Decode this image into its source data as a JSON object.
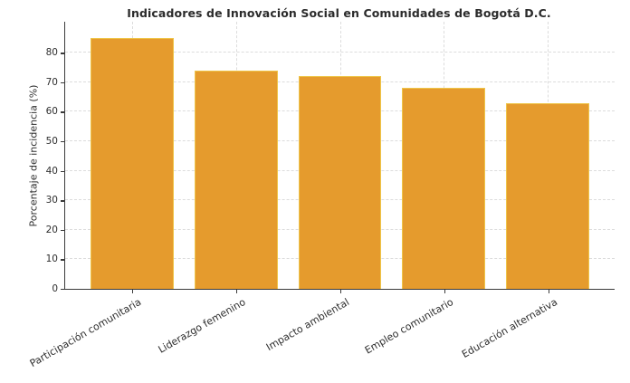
{
  "chart_data": {
    "type": "bar",
    "title": "Indicadores de Innovación Social en Comunidades de Bogotá D.C.",
    "xlabel": "",
    "ylabel": "Porcentaje de incidencia (%)",
    "categories": [
      "Participación comunitaria",
      "Liderazgo femenino",
      "Impacto ambiental",
      "Empleo comunitario",
      "Educación alternativa"
    ],
    "values": [
      85,
      74,
      72,
      68,
      63
    ],
    "yticks": [
      0,
      10,
      20,
      30,
      40,
      50,
      60,
      70,
      80
    ],
    "ylim": [
      0,
      90.5
    ],
    "xlim": [
      -0.64,
      4.64
    ],
    "bar_width": 0.8,
    "grid": true,
    "legend": "none",
    "xtick_rotation_deg": 30,
    "colors": {
      "bar_fill": "#E59B2D",
      "bar_edge": "#EFC549",
      "grid": "#DCDCDC",
      "spine": "#3A3A3A",
      "text": "#2E2E2E",
      "background": "#FFFFFF"
    }
  }
}
